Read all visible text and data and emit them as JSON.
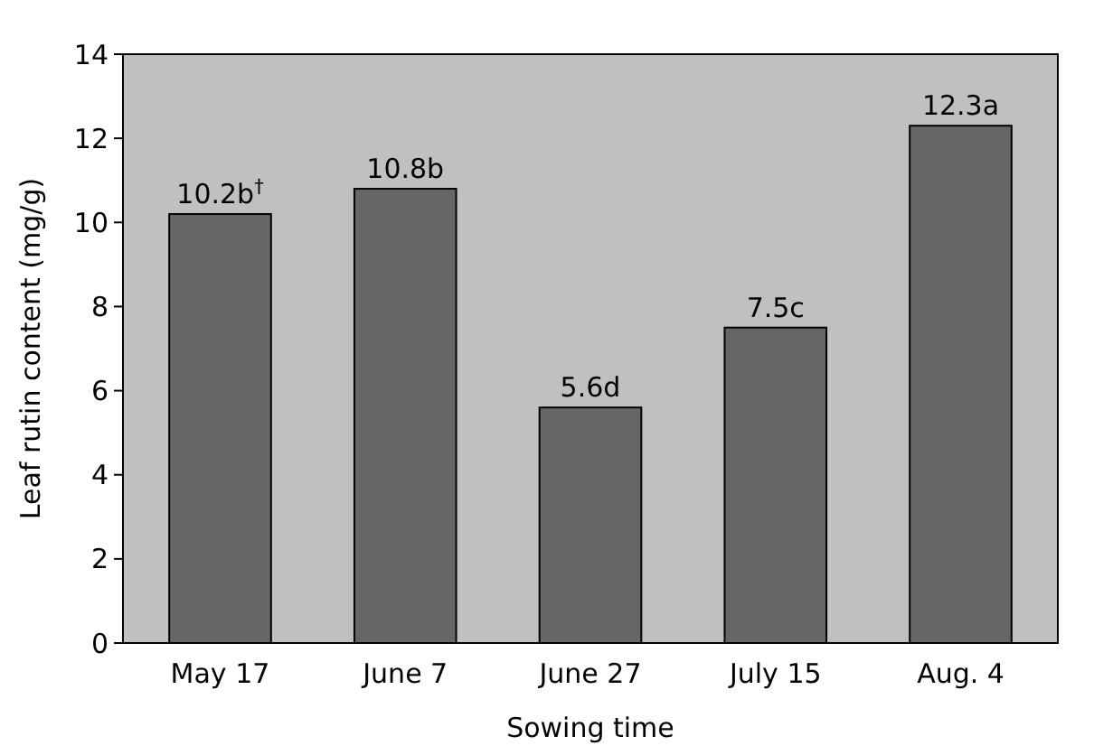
{
  "chart_data": {
    "type": "bar",
    "xlabel": "Sowing time",
    "ylabel": "Leaf rutin content (mg/g)",
    "categories": [
      "May 17",
      "June 7",
      "June 27",
      "July 15",
      "Aug. 4"
    ],
    "values": [
      10.2,
      10.8,
      5.6,
      7.5,
      12.3
    ],
    "value_labels": [
      "10.2b$^{†}$",
      "10.8b",
      "5.6d",
      "7.5c",
      "12.3a"
    ],
    "color": "#666666",
    "ylim": [
      0,
      14
    ],
    "yticks": [
      0,
      2,
      4,
      6,
      8,
      10,
      12,
      14
    ],
    "grid": false
  }
}
